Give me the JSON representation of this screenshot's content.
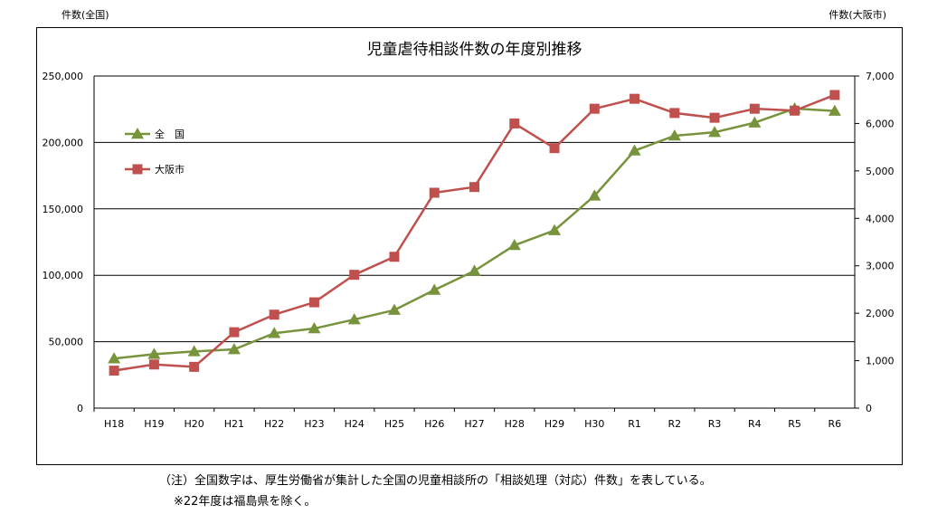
{
  "chart_data": {
    "type": "line",
    "title": "児童虐待相談件数の年度別推移",
    "y_left_label": "件数(全国)",
    "y_right_label": "件数(大阪市)",
    "categories": [
      "H18",
      "H19",
      "H20",
      "H21",
      "H22",
      "H23",
      "H24",
      "H25",
      "H26",
      "H27",
      "H28",
      "H29",
      "H30",
      "R1",
      "R2",
      "R3",
      "R4",
      "R5",
      "R6"
    ],
    "y_left_ticks": [
      "0",
      "50,000",
      "100,000",
      "150,000",
      "200,000",
      "250,000"
    ],
    "y_right_ticks": [
      "0",
      "1,000",
      "2,000",
      "3,000",
      "4,000",
      "5,000",
      "6,000",
      "7,000"
    ],
    "ylim_left": [
      0,
      250000
    ],
    "ylim_right": [
      0,
      7000
    ],
    "grid": true,
    "legend_position": "left-inside",
    "series": [
      {
        "name": "全　国",
        "axis": "left",
        "color": "#77933C",
        "marker": "triangle",
        "values": [
          37323,
          40639,
          42664,
          44211,
          56384,
          59919,
          66701,
          73802,
          88931,
          103286,
          122575,
          133778,
          159838,
          193780,
          205044,
          207660,
          214843,
          225509,
          223691
        ]
      },
      {
        "name": "大阪市",
        "axis": "right",
        "color": "#C0504D",
        "marker": "square",
        "values": [
          790,
          920,
          870,
          1600,
          1970,
          2230,
          2810,
          3190,
          4540,
          4660,
          6000,
          5480,
          6310,
          6520,
          6220,
          6120,
          6310,
          6270,
          6600
        ]
      }
    ]
  },
  "notes": {
    "line1": "（注）全国数字は、厚生労働省が集計した全国の児童相談所の「相談処理（対応）件数」を表している。",
    "line2": "※22年度は福島県を除く。"
  }
}
